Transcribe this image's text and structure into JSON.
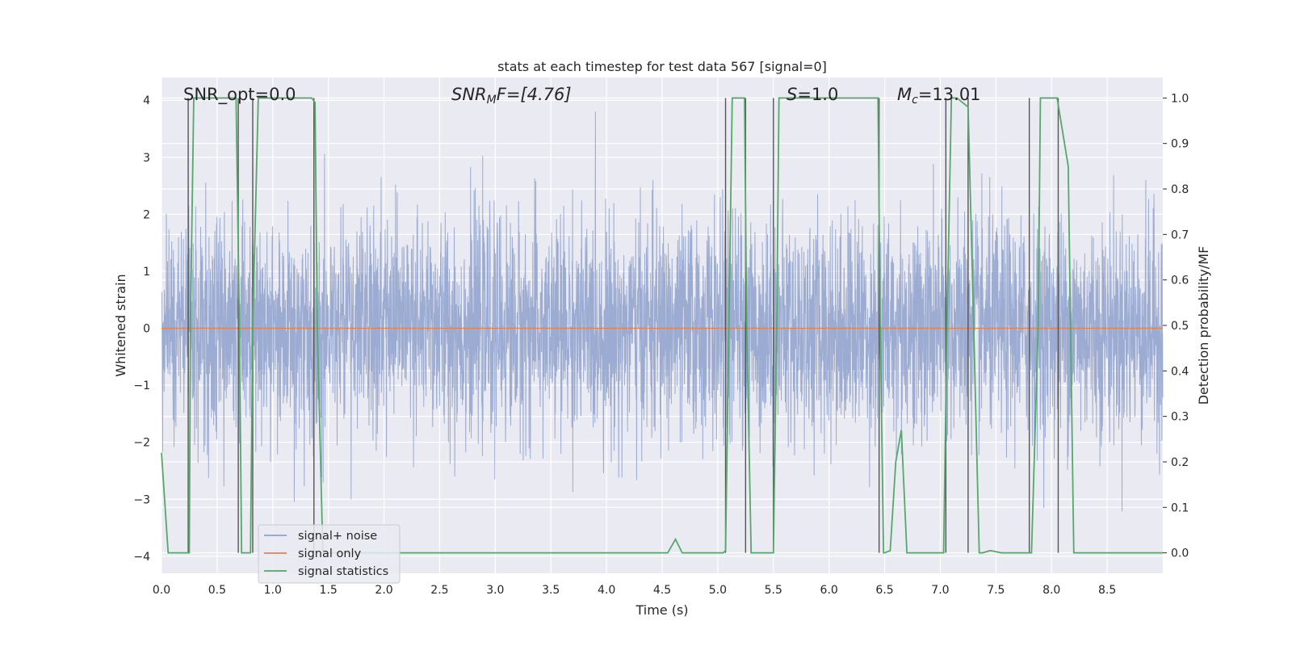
{
  "chart_data": {
    "type": "line",
    "title": "stats at each timestep for test data 567 [signal=0]",
    "xlabel": "Time (s)",
    "ylabel": "Whitened strain",
    "y2label": "Detection probability/MF",
    "xlim": [
      0.0,
      9.0
    ],
    "ylim": [
      -4.3,
      4.4
    ],
    "y2lim": [
      -0.045,
      1.045
    ],
    "xticks": [
      "0.0",
      "0.5",
      "1.0",
      "1.5",
      "2.0",
      "2.5",
      "3.0",
      "3.5",
      "4.0",
      "4.5",
      "5.0",
      "5.5",
      "6.0",
      "6.5",
      "7.0",
      "7.5",
      "8.0",
      "8.5"
    ],
    "yticks": [
      "4",
      "3",
      "2",
      "1",
      "0",
      "−1",
      "−2",
      "−3",
      "−4"
    ],
    "y2ticks": [
      "1.0",
      "0.9",
      "0.8",
      "0.7",
      "0.6",
      "0.5",
      "0.4",
      "0.3",
      "0.2",
      "0.1",
      "0.0"
    ],
    "grid": true,
    "legend": {
      "placement": "lower-left",
      "entries": [
        "signal+ noise",
        "signal only",
        "signal statistics"
      ]
    },
    "annotations": {
      "snr_opt": "SNR_opt=0.0",
      "snr_mf_main": "SNR",
      "snr_mf_sub": "M",
      "snr_mf_rest": "F=[4.76]",
      "s_main": "S",
      "s_rest": "=1.0",
      "mc_main": "M",
      "mc_sub": "c",
      "mc_rest": "=13.01"
    },
    "colors": {
      "noise": "#8da0cb",
      "signal": "#dd8452",
      "stats": "#55a868",
      "marker": "#555555",
      "background": "#eaeaf2",
      "grid": "#ffffff"
    },
    "series": [
      {
        "name": "signal+ noise",
        "description": "dense whitened strain noise, roughly Gaussian",
        "sigma": 0.95,
        "peak_range": [
          -3.5,
          3.8
        ]
      },
      {
        "name": "signal only",
        "y_constant": 0.0
      },
      {
        "name": "signal statistics",
        "axis": "right",
        "x": [
          0.0,
          0.06,
          0.25,
          0.26,
          0.29,
          0.3,
          0.5,
          0.67,
          0.7,
          0.72,
          0.76,
          0.8,
          0.82,
          0.87,
          0.9,
          0.95,
          1.1,
          1.3,
          1.35,
          1.38,
          1.4,
          1.45,
          1.5,
          2.0,
          2.5,
          3.0,
          3.5,
          4.0,
          4.5,
          4.55,
          4.62,
          4.68,
          4.8,
          4.95,
          5.05,
          5.07,
          5.1,
          5.13,
          5.24,
          5.26,
          5.3,
          5.35,
          5.45,
          5.5,
          5.53,
          5.55,
          5.6,
          5.7,
          6.0,
          6.2,
          6.44,
          6.46,
          6.49,
          6.5,
          6.55,
          6.6,
          6.65,
          6.7,
          6.76,
          6.8,
          6.9,
          6.95,
          7.03,
          7.06,
          7.1,
          7.15,
          7.25,
          7.3,
          7.35,
          7.38,
          7.45,
          7.55,
          7.6,
          7.7,
          7.8,
          7.82,
          7.88,
          7.9,
          8.05,
          8.15,
          8.2,
          8.25,
          8.9,
          9.0
        ],
        "y": [
          0.22,
          0.0,
          0.0,
          0.5,
          1.0,
          1.0,
          1.0,
          1.0,
          0.5,
          0.0,
          0.0,
          0.0,
          0.5,
          1.0,
          1.0,
          1.0,
          1.0,
          1.0,
          1.0,
          0.99,
          0.5,
          0.0,
          0.0,
          0.0,
          0.0,
          0.0,
          0.0,
          0.0,
          0.0,
          0.0,
          0.03,
          0.0,
          0.0,
          0.0,
          0.0,
          0.005,
          0.5,
          1.0,
          1.0,
          0.5,
          0.0,
          0.0,
          0.0,
          0.0,
          0.5,
          1.0,
          1.0,
          1.0,
          1.0,
          1.0,
          1.0,
          0.5,
          0.0,
          0.0,
          0.005,
          0.2,
          0.27,
          0.0,
          0.0,
          0.0,
          0.0,
          0.0,
          0.0,
          0.5,
          1.0,
          1.0,
          0.98,
          0.5,
          0.0,
          0.0,
          0.005,
          0.0,
          0.0,
          0.0,
          0.0,
          0.0,
          0.5,
          1.0,
          1.0,
          0.85,
          0.0,
          0.0,
          0.0,
          0.0
        ]
      }
    ],
    "marker_lines": {
      "description": "vertical dark-gray detection markers from 0.0 to 1.0 on right axis",
      "x": [
        0.24,
        0.69,
        0.82,
        1.37,
        5.07,
        5.25,
        5.5,
        6.45,
        7.05,
        7.25,
        7.8,
        8.06
      ]
    }
  }
}
